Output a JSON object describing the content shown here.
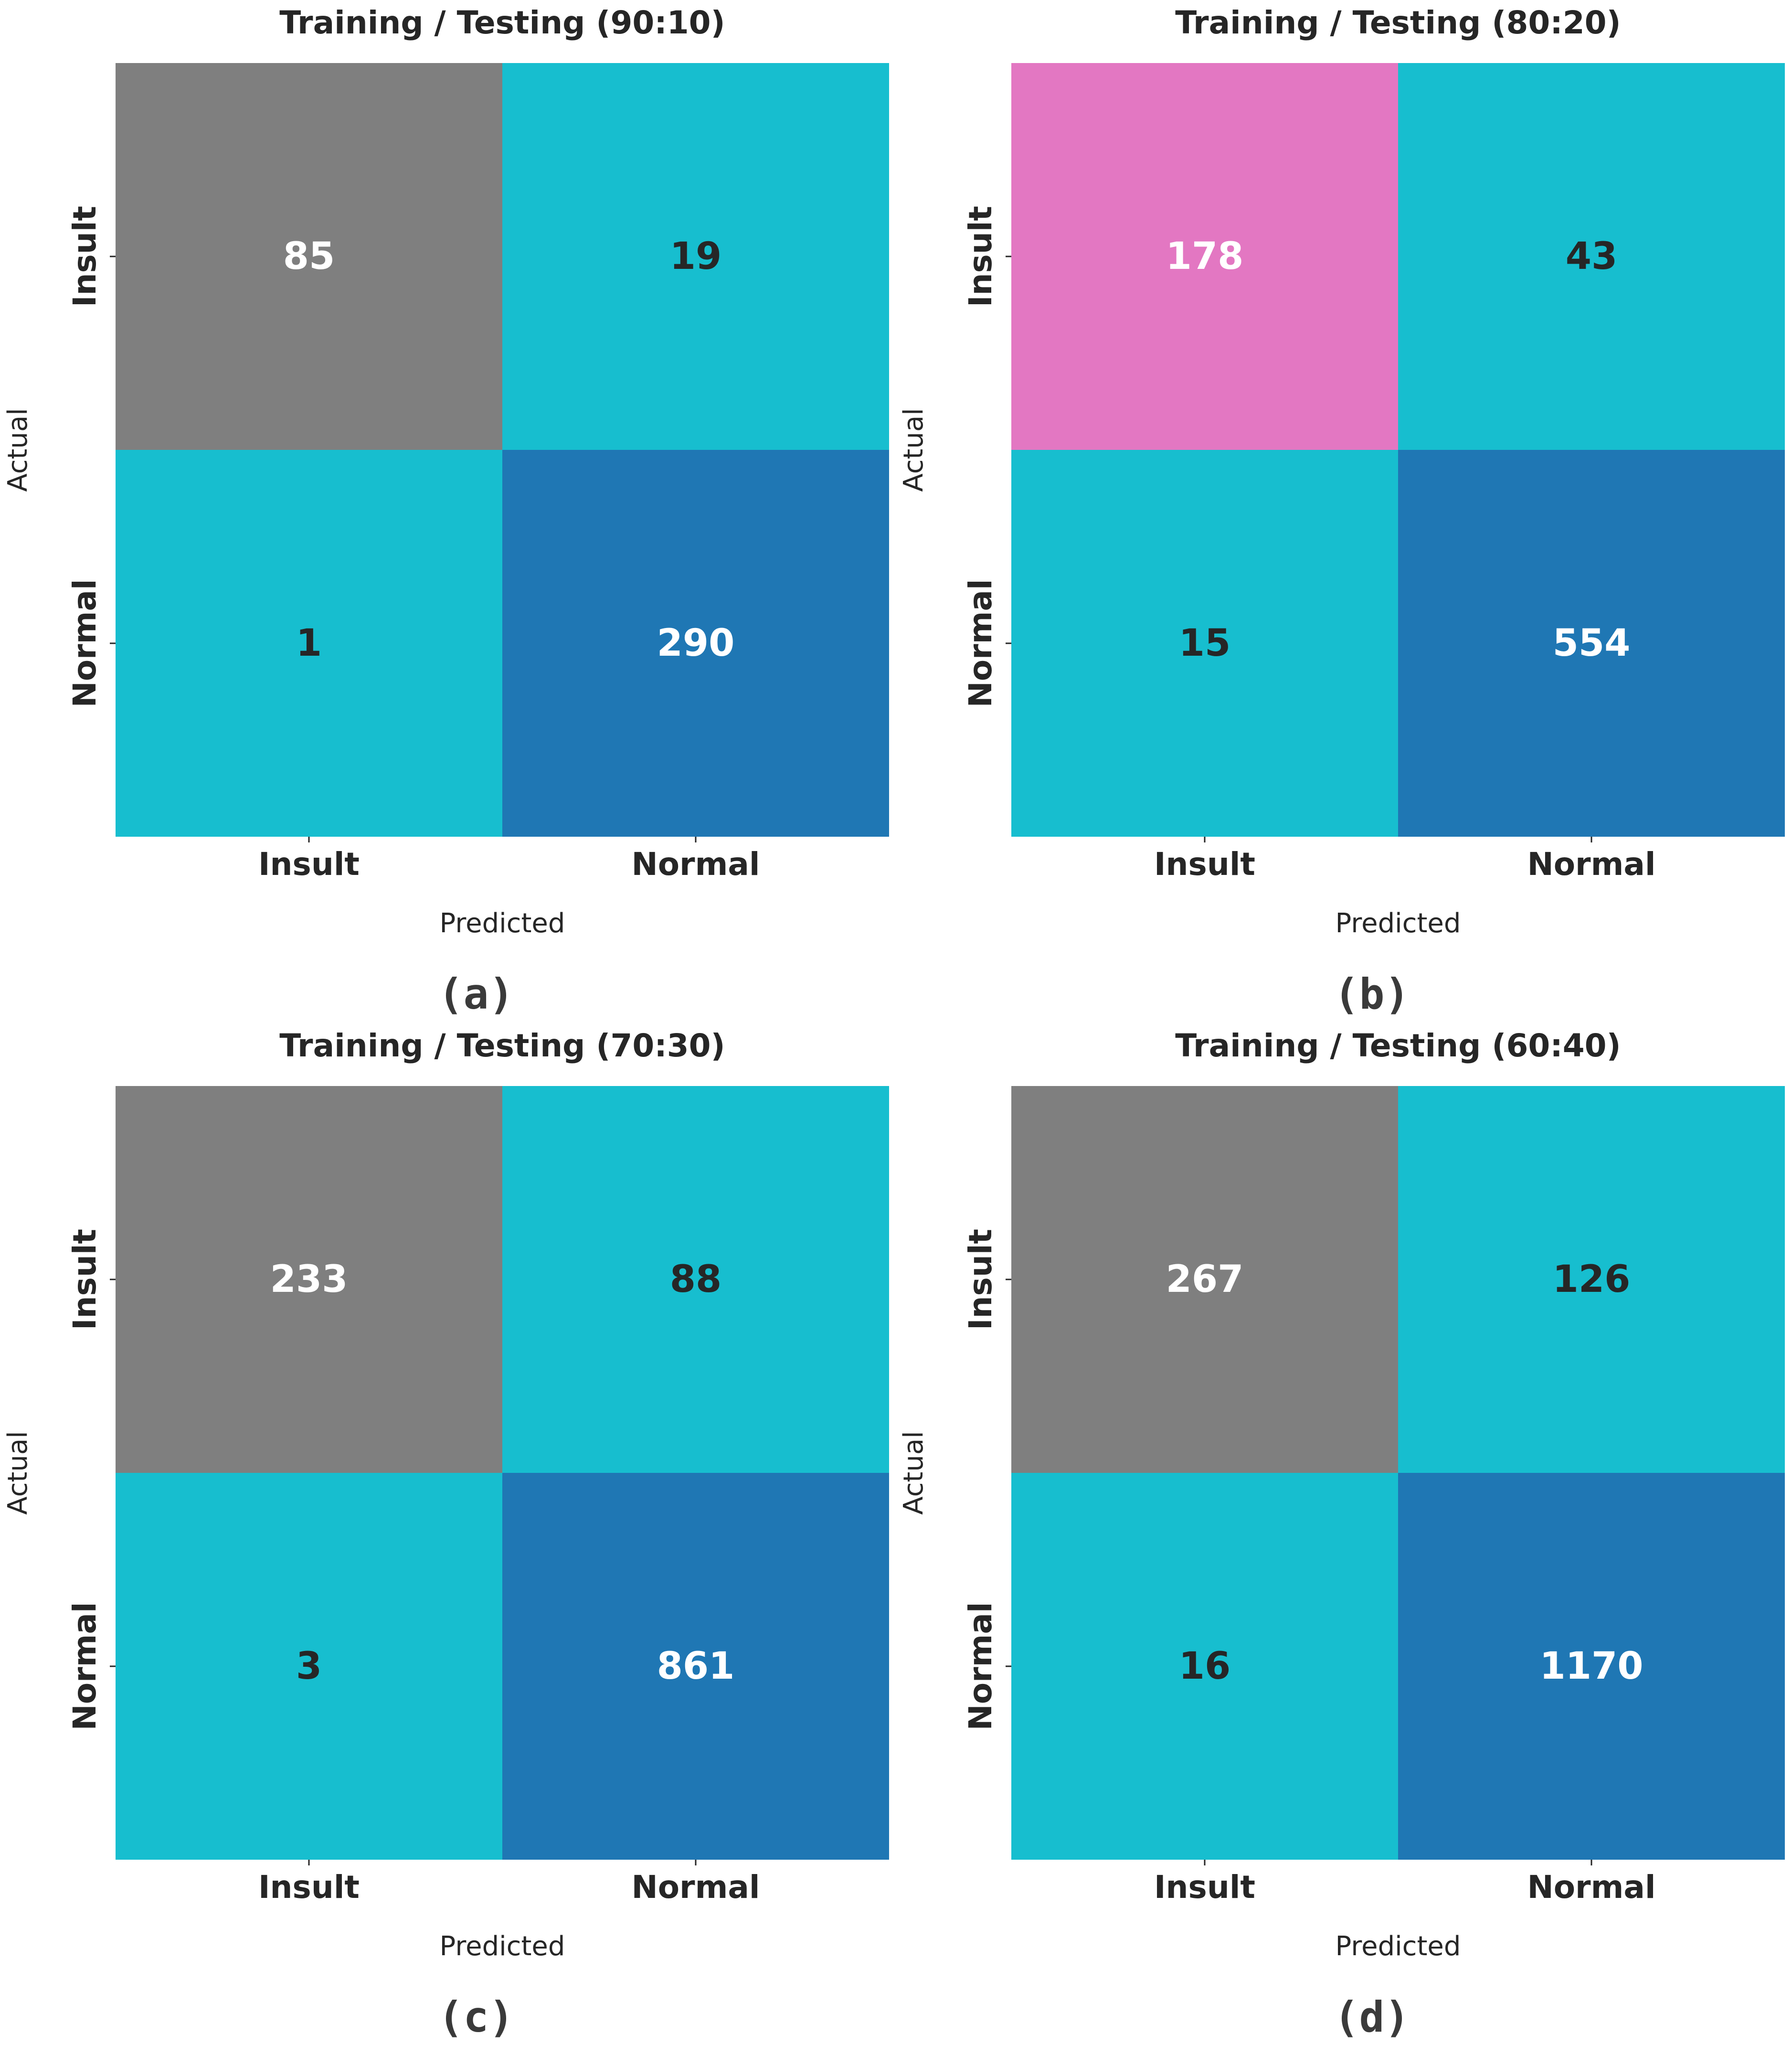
{
  "chart_data": [
    {
      "type": "heatmap",
      "title": "Training / Testing (90:10)",
      "caption": "(a)",
      "xlabel": "Predicted",
      "ylabel": "Actual",
      "x_categories": [
        "Insult",
        "Normal"
      ],
      "y_categories": [
        "Insult",
        "Normal"
      ],
      "matrix": [
        [
          85,
          19
        ],
        [
          1,
          290
        ]
      ],
      "cell_colors": [
        [
          "#7f7f7f",
          "#17becf"
        ],
        [
          "#17becf",
          "#1f77b4"
        ]
      ],
      "text_colors": [
        [
          "#ffffff",
          "#262626"
        ],
        [
          "#262626",
          "#ffffff"
        ]
      ]
    },
    {
      "type": "heatmap",
      "title": "Training / Testing (80:20)",
      "caption": "(b)",
      "xlabel": "Predicted",
      "ylabel": "Actual",
      "x_categories": [
        "Insult",
        "Normal"
      ],
      "y_categories": [
        "Insult",
        "Normal"
      ],
      "matrix": [
        [
          178,
          43
        ],
        [
          15,
          554
        ]
      ],
      "cell_colors": [
        [
          "#e377c2",
          "#17becf"
        ],
        [
          "#17becf",
          "#1f77b4"
        ]
      ],
      "text_colors": [
        [
          "#ffffff",
          "#262626"
        ],
        [
          "#262626",
          "#ffffff"
        ]
      ]
    },
    {
      "type": "heatmap",
      "title": "Training / Testing (70:30)",
      "caption": "(c)",
      "xlabel": "Predicted",
      "ylabel": "Actual",
      "x_categories": [
        "Insult",
        "Normal"
      ],
      "y_categories": [
        "Insult",
        "Normal"
      ],
      "matrix": [
        [
          233,
          88
        ],
        [
          3,
          861
        ]
      ],
      "cell_colors": [
        [
          "#7f7f7f",
          "#17becf"
        ],
        [
          "#17becf",
          "#1f77b4"
        ]
      ],
      "text_colors": [
        [
          "#ffffff",
          "#262626"
        ],
        [
          "#262626",
          "#ffffff"
        ]
      ]
    },
    {
      "type": "heatmap",
      "title": "Training / Testing (60:40)",
      "caption": "(d)",
      "xlabel": "Predicted",
      "ylabel": "Actual",
      "x_categories": [
        "Insult",
        "Normal"
      ],
      "y_categories": [
        "Insult",
        "Normal"
      ],
      "matrix": [
        [
          267,
          126
        ],
        [
          16,
          1170
        ]
      ],
      "cell_colors": [
        [
          "#7f7f7f",
          "#17becf"
        ],
        [
          "#17becf",
          "#1f77b4"
        ]
      ],
      "text_colors": [
        [
          "#ffffff",
          "#262626"
        ],
        [
          "#262626",
          "#ffffff"
        ]
      ]
    }
  ]
}
